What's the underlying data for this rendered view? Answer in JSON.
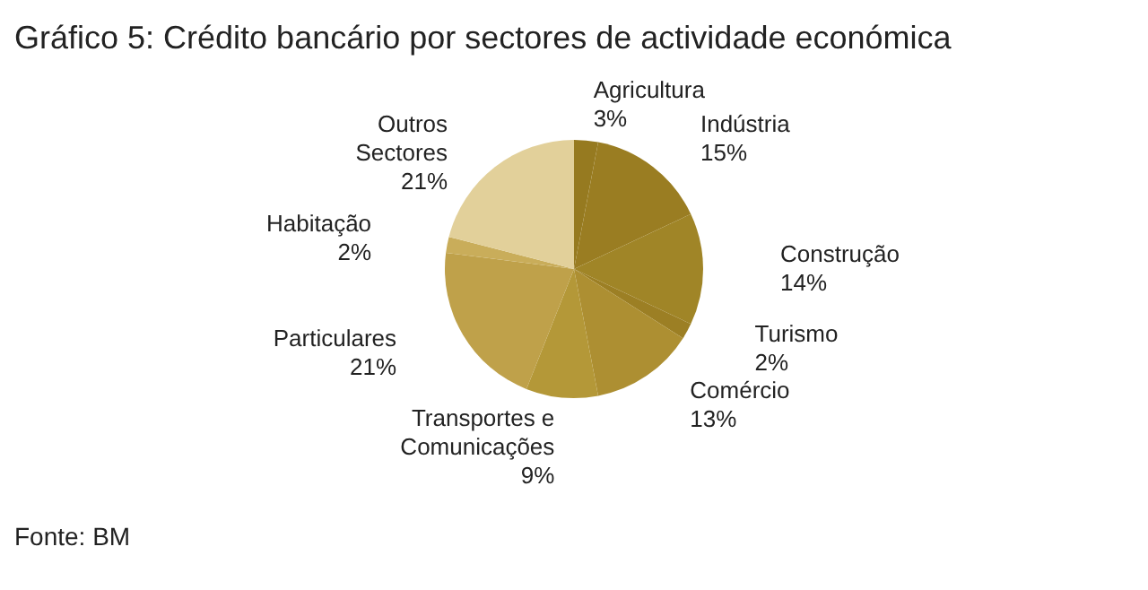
{
  "chart_data": {
    "type": "pie",
    "title": "Gráfico 5: Crédito bancário por sectores de actividade económica",
    "categories": [
      "Agricultura",
      "Indústria",
      "Construção",
      "Turismo",
      "Comércio",
      "Transportes e Comunicações",
      "Particulares",
      "Habitação",
      "Outros Sectores"
    ],
    "values": [
      3,
      15,
      14,
      2,
      13,
      9,
      21,
      2,
      21
    ],
    "value_labels": [
      "3%",
      "15%",
      "14%",
      "2%",
      "13%",
      "9%",
      "21%",
      "2%",
      "21%"
    ],
    "colors": [
      "#967a20",
      "#9a7d22",
      "#a08527",
      "#9c7f24",
      "#ad8f32",
      "#b49838",
      "#bfa14a",
      "#c9ad5a",
      "#e2d09a"
    ],
    "annotations": [
      "Fonte: BM"
    ]
  }
}
